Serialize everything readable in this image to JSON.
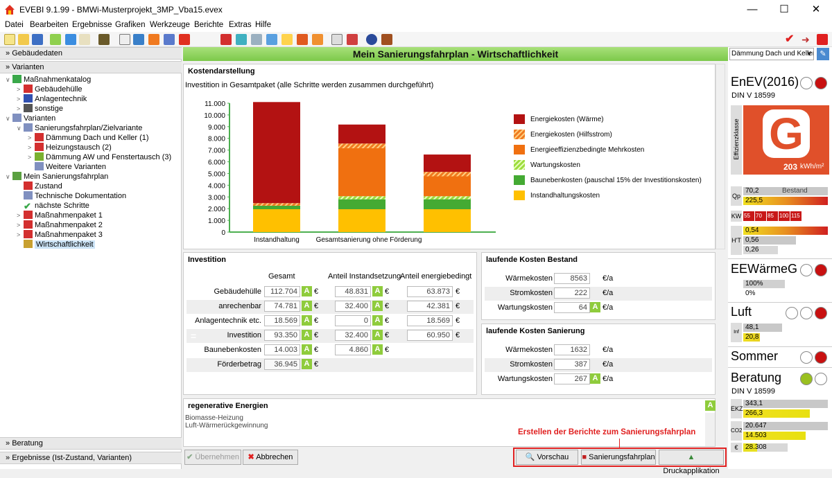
{
  "window": {
    "title": "EVEBI 9.1.99 - BMWi-Musterprojekt_3MP_Vba15.evex"
  },
  "menu": [
    "Datei",
    "Bearbeiten",
    "Ergebnisse",
    "Grafiken",
    "Werkzeuge",
    "Berichte",
    "Extras",
    "Hilfe"
  ],
  "left": {
    "gebaeudedaten": "Gebäudedaten",
    "varianten": "Varianten",
    "beratung": "Beratung",
    "ergebnisse": "Ergebnisse (Ist-Zustand, Varianten)",
    "tree": [
      {
        "label": "Maßnahmenkatalog"
      },
      {
        "label": "Gebäudehülle"
      },
      {
        "label": "Anlagentechnik"
      },
      {
        "label": "sonstige"
      },
      {
        "label": "Varianten"
      },
      {
        "label": "Sanierungsfahrplan/Zielvariante"
      },
      {
        "label": "Dämmung Dach und Keller (1)"
      },
      {
        "label": "Heizungstausch (2)"
      },
      {
        "label": "Dämmung AW und Fenstertausch (3)"
      },
      {
        "label": "Weitere Varianten"
      },
      {
        "label": "Mein Sanierungsfahrplan"
      },
      {
        "label": "Zustand"
      },
      {
        "label": "Technische Dokumentation"
      },
      {
        "label": "nächste Schritte"
      },
      {
        "label": "Maßnahmenpaket 1"
      },
      {
        "label": "Maßnahmenpaket 2"
      },
      {
        "label": "Maßnahmenpaket 3"
      },
      {
        "label": "Wirtschaftlichkeit"
      }
    ]
  },
  "main": {
    "title": "Mein Sanierungsfahrplan - Wirtschaftlichkeit",
    "kosten": {
      "title": "Kostendarstellung",
      "subtitle": "Investition in Gesamtpaket (alle Schritte werden zusammen durchgeführt)"
    },
    "investition": {
      "title": "Investition",
      "headers": [
        "Gesamt",
        "Anteil Instandsetzung",
        "Anteil energiebedingt"
      ],
      "rows": [
        {
          "label": "Gebäudehülle",
          "g": "112.704",
          "i": "48.831",
          "e": "63.873"
        },
        {
          "label": "anrechenbar",
          "g": "74.781",
          "i": "32.400",
          "e": "42.381"
        },
        {
          "label": "Anlagentechnik etc.",
          "g": "18.569",
          "i": "0",
          "e": "18.569"
        },
        {
          "label": "Investition",
          "g": "93.350",
          "i": "32.400",
          "e": "60.950"
        },
        {
          "label": "Baunebenkosten",
          "g": "14.003",
          "i": "4.860",
          "e": ""
        },
        {
          "label": "Förderbetrag",
          "g": "36.945",
          "i": "",
          "e": ""
        }
      ],
      "euro": "€"
    },
    "bestand": {
      "title": "laufende Kosten Bestand",
      "rows": [
        {
          "label": "Wärmekosten",
          "v": "8563"
        },
        {
          "label": "Stromkosten",
          "v": "222"
        },
        {
          "label": "Wartungskosten",
          "v": "64"
        }
      ],
      "unit": "€/a"
    },
    "sanierung": {
      "title": "laufende Kosten Sanierung",
      "rows": [
        {
          "label": "Wärmekosten",
          "v": "1632"
        },
        {
          "label": "Stromkosten",
          "v": "387"
        },
        {
          "label": "Wartungskosten",
          "v": "267"
        }
      ],
      "unit": "€/a"
    },
    "regenerativ": {
      "title": "regenerative Energien",
      "items": [
        "Biomasse-Heizung",
        "Luft-Wärmerückgewinnung"
      ]
    },
    "annotation": "Erstellen der Berichte zum Sanierungsfahrplan",
    "buttons": {
      "uebernehmen": "Übernehmen",
      "abbrechen": "Abbrechen",
      "vorschau": "Vorschau",
      "sfp": "Sanierungsfahrplan",
      "druck": "Druckapplikation"
    }
  },
  "right": {
    "dropdown": "Dämmung Dach und Keller",
    "enev": "EnEV(2016)",
    "din": "DIN V 18599",
    "effizienz": "Effizienzklasse",
    "grade": "G",
    "kwh": "203",
    "kwh_unit": "kWh/m²",
    "qp_label": "Qp",
    "qp1": "70,2",
    "qp_bestand": "Bestand",
    "qp2": "225,5",
    "kw_label": "KW",
    "kw": [
      "55",
      "70",
      "85",
      "100",
      "115"
    ],
    "ht_label": "H'T",
    "ht": [
      "0,54",
      "0,56",
      "0,26"
    ],
    "eew": "EEWärmeG",
    "eew_vals": [
      "100%",
      "0%"
    ],
    "luft": "Luft",
    "luft_label": "Inf min",
    "luft_vals": [
      "48,1",
      "20,8"
    ],
    "sommer": "Sommer",
    "beratung": "Beratung",
    "din2": "DIN V 18599",
    "ekz_label": "EKZ",
    "ekz": [
      "343,1",
      "266,3"
    ],
    "co2_label": "CO2",
    "co2": [
      "20.647",
      "14.503"
    ],
    "eur_label": "€",
    "eur": "28.308"
  },
  "colors": {
    "energy_heat": "#b31212",
    "energy_hilf": "#f07a20",
    "mehr": "#f07010",
    "wartung": "#9ddc3c",
    "baunebe": "#44aa33",
    "instand": "#ffc000"
  },
  "chart_data": {
    "type": "bar",
    "stacked": true,
    "categories": [
      "Instandhaltung",
      "Gesamtsanierung ohne Förderung",
      ""
    ],
    "ylim": [
      0,
      11000
    ],
    "yticks": [
      "0",
      "1.000",
      "2.000",
      "3.000",
      "4.000",
      "5.000",
      "6.000",
      "7.000",
      "8.000",
      "9.000",
      "10.000",
      "11.000"
    ],
    "series": [
      {
        "name": "Instandhaltungskosten",
        "color": "#ffc000",
        "values": [
          1950,
          1950,
          1950
        ]
      },
      {
        "name": "Baunebenkosten (pauschal 15% der Investitionskosten)",
        "color": "#44aa33",
        "values": [
          300,
          850,
          850
        ]
      },
      {
        "name": "Wartungskosten",
        "color": "#9ddc3c",
        "values": [
          0,
          260,
          260
        ]
      },
      {
        "name": "Energieeffizienzbedingte Mehrkosten",
        "color": "#f07010",
        "values": [
          0,
          4100,
          1700
        ]
      },
      {
        "name": "Energiekosten (Hilfsstrom)",
        "color": "#f07a20",
        "values": [
          220,
          400,
          380
        ]
      },
      {
        "name": "Energiekosten (Wärme)",
        "color": "#b31212",
        "values": [
          8630,
          1620,
          1480
        ]
      }
    ]
  }
}
